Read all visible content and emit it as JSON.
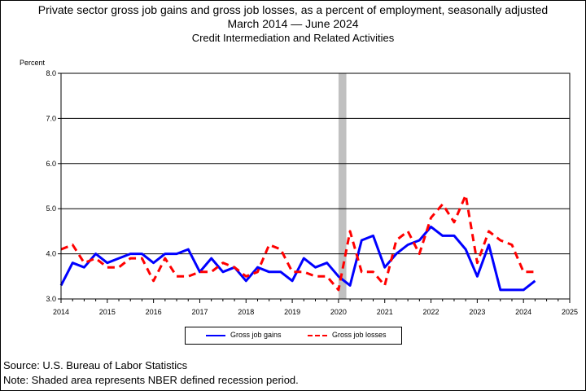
{
  "chart_data": {
    "type": "line",
    "title": "Private sector gross job gains and gross job losses, as a percent of employment, seasonally adjusted",
    "subtitle": "March 2014 — June 2024",
    "industry": "Credit Intermediation and Related Activities",
    "ylabel": "Percent",
    "xlabel": "",
    "ylim": [
      3.0,
      8.0
    ],
    "yticks": [
      "3.0",
      "4.0",
      "5.0",
      "6.0",
      "7.0",
      "8.0"
    ],
    "xlim": [
      2014,
      2025
    ],
    "xticks": [
      "2014",
      "2015",
      "2016",
      "2017",
      "2018",
      "2019",
      "2020",
      "2021",
      "2022",
      "2023",
      "2024",
      "2025"
    ],
    "grid": true,
    "legend_position": "bottom",
    "recession": {
      "start": 2020.0,
      "end": 2020.17,
      "color": "#c0c0c0"
    },
    "x": [
      2014.0,
      2014.25,
      2014.5,
      2014.75,
      2015.0,
      2015.25,
      2015.5,
      2015.75,
      2016.0,
      2016.25,
      2016.5,
      2016.75,
      2017.0,
      2017.25,
      2017.5,
      2017.75,
      2018.0,
      2018.25,
      2018.5,
      2018.75,
      2019.0,
      2019.25,
      2019.5,
      2019.75,
      2020.0,
      2020.25,
      2020.5,
      2020.75,
      2021.0,
      2021.25,
      2021.5,
      2021.75,
      2022.0,
      2022.25,
      2022.5,
      2022.75,
      2023.0,
      2023.25,
      2023.5,
      2023.75,
      2024.0,
      2024.25
    ],
    "series": [
      {
        "name": "Gross job gains",
        "color": "#0000ff",
        "dash": "solid",
        "values": [
          3.3,
          3.8,
          3.7,
          4.0,
          3.8,
          3.9,
          4.0,
          4.0,
          3.8,
          4.0,
          4.0,
          4.1,
          3.6,
          3.9,
          3.6,
          3.7,
          3.4,
          3.7,
          3.6,
          3.6,
          3.4,
          3.9,
          3.7,
          3.8,
          3.5,
          3.3,
          4.3,
          4.4,
          3.7,
          4.0,
          4.2,
          4.3,
          4.6,
          4.4,
          4.4,
          4.1,
          3.5,
          4.2,
          3.2,
          3.2,
          3.2,
          3.4
        ]
      },
      {
        "name": "Gross job losses",
        "color": "#ff0000",
        "dash": "dashed",
        "values": [
          4.1,
          4.2,
          3.8,
          3.9,
          3.7,
          3.7,
          3.9,
          3.9,
          3.4,
          3.9,
          3.5,
          3.5,
          3.6,
          3.6,
          3.8,
          3.7,
          3.5,
          3.6,
          4.2,
          4.1,
          3.6,
          3.6,
          3.5,
          3.5,
          3.2,
          4.5,
          3.6,
          3.6,
          3.3,
          4.3,
          4.5,
          4.0,
          4.8,
          5.1,
          4.7,
          5.3,
          3.8,
          4.5,
          4.3,
          4.2,
          3.6,
          3.6
        ]
      }
    ]
  },
  "footer": {
    "source": "Source: U.S. Bureau of Labor Statistics",
    "note": "Note: Shaded area represents NBER defined recession period."
  }
}
